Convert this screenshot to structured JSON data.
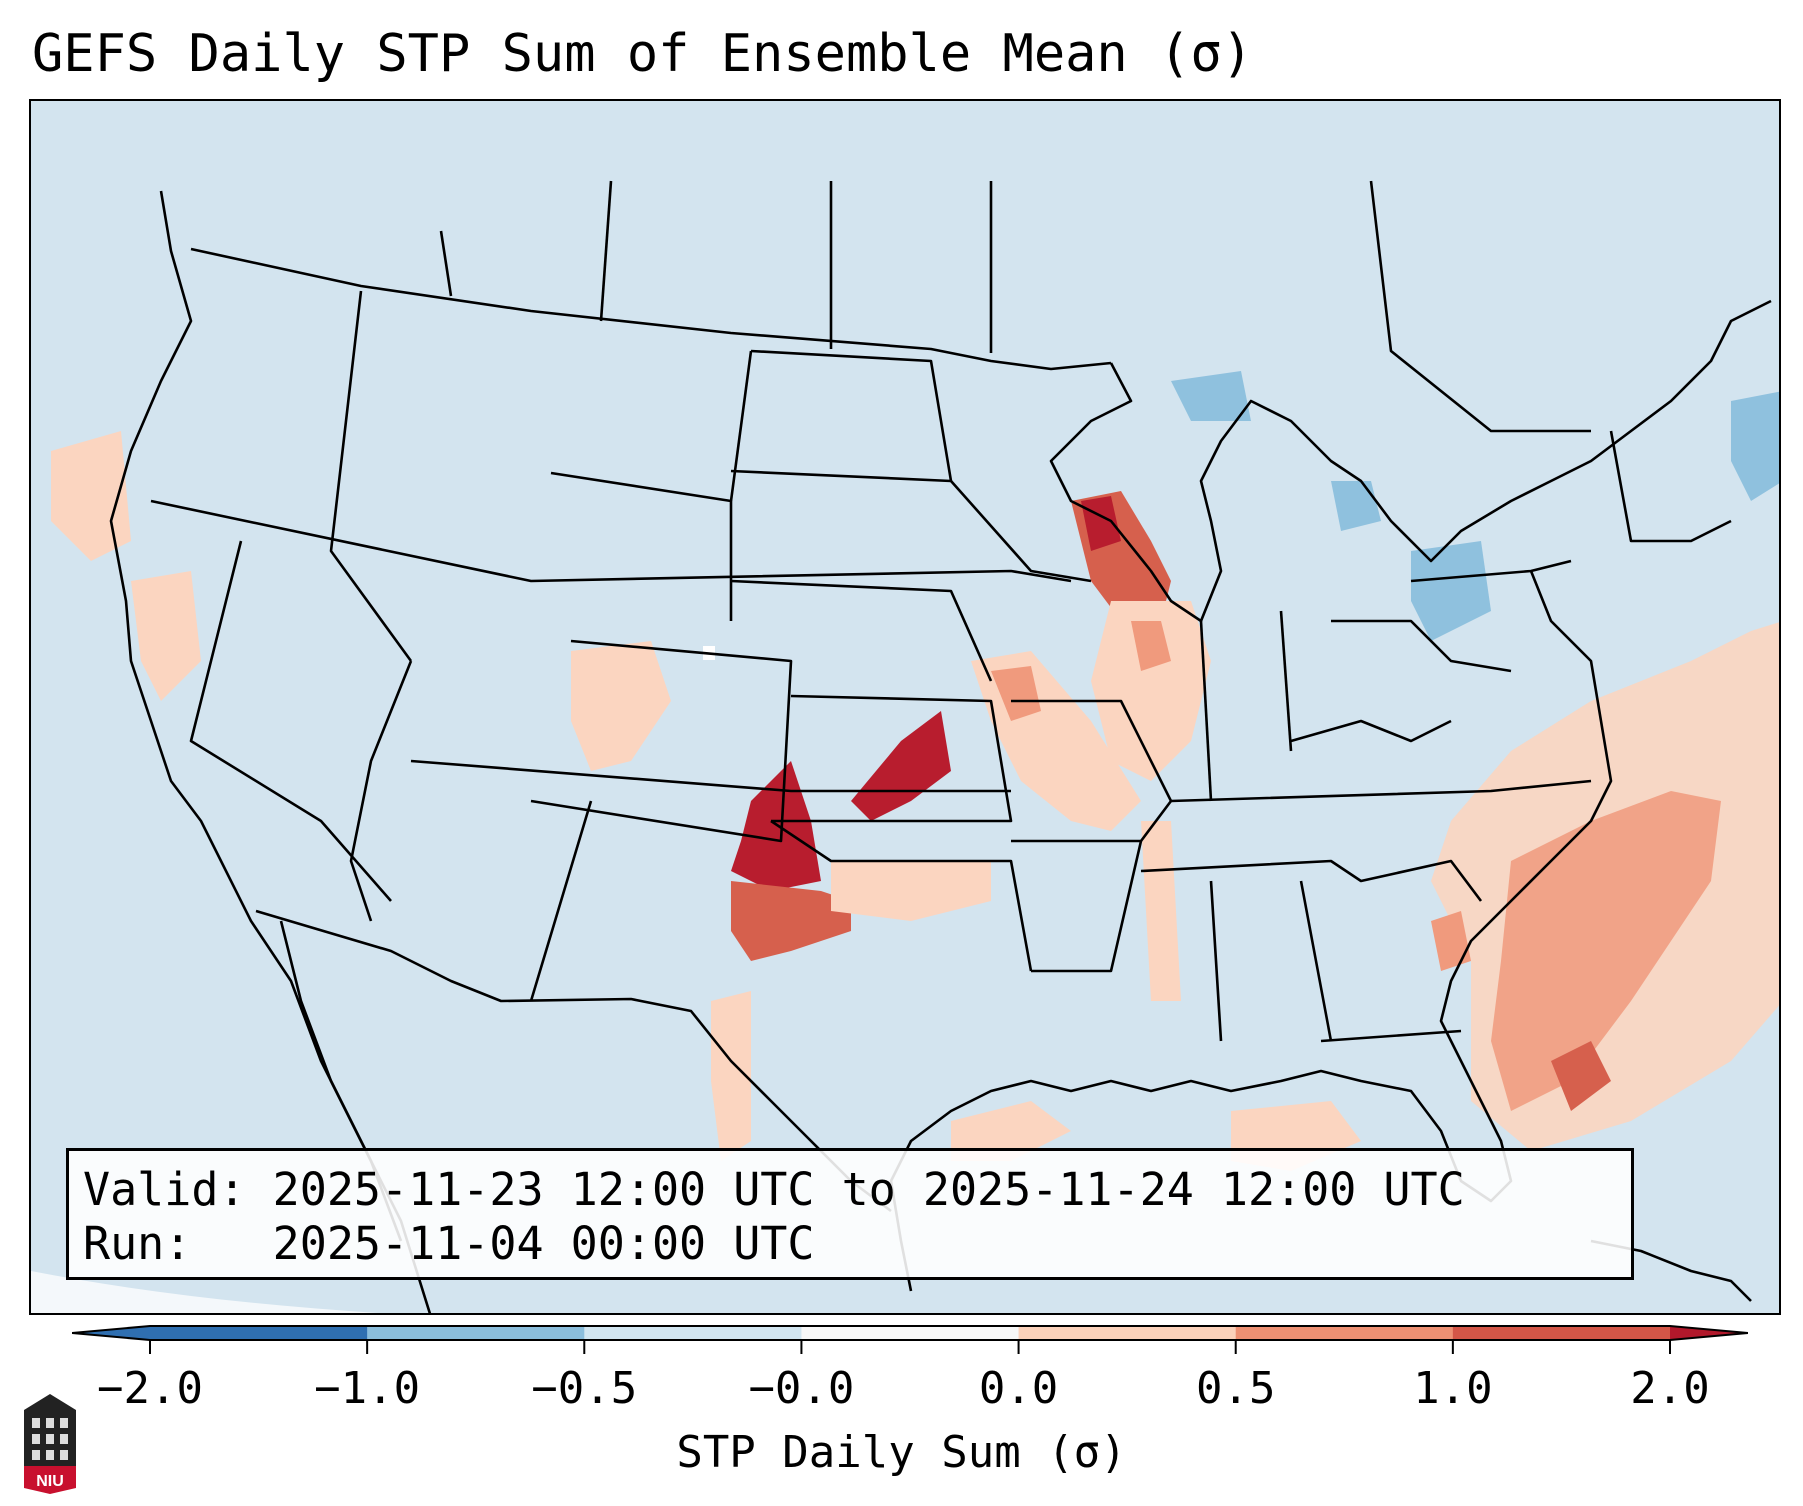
{
  "title": "GEFS Daily STP Sum of Ensemble Mean (σ)",
  "valid_line": "Valid: 2025-11-23 12:00 UTC to 2025-11-24 12:00 UTC",
  "run_line": "Run:   2025-11-04 00:00 UTC",
  "colorbar": {
    "label": "STP Daily Sum (σ)",
    "ticks": [
      "−2.0",
      "−1.0",
      "−0.5",
      "−0.0",
      "0.0",
      "0.5",
      "1.0",
      "2.0"
    ],
    "colors": [
      "#2f6fb1",
      "#8bbedc",
      "#d1e5f0",
      "#f7f7f7",
      "#fbd1ba",
      "#ed9073",
      "#d35647",
      "#b2182b"
    ],
    "extend": "both"
  },
  "logo_text": "NIU",
  "colors": {
    "ocean_land": "#d3e4ef",
    "light_pos": "#fbd5c0",
    "med_pos": "#f09a7d",
    "strong_pos": "#d6604d",
    "max_pos": "#b81d2e",
    "light_neg": "#8fc1de"
  }
}
